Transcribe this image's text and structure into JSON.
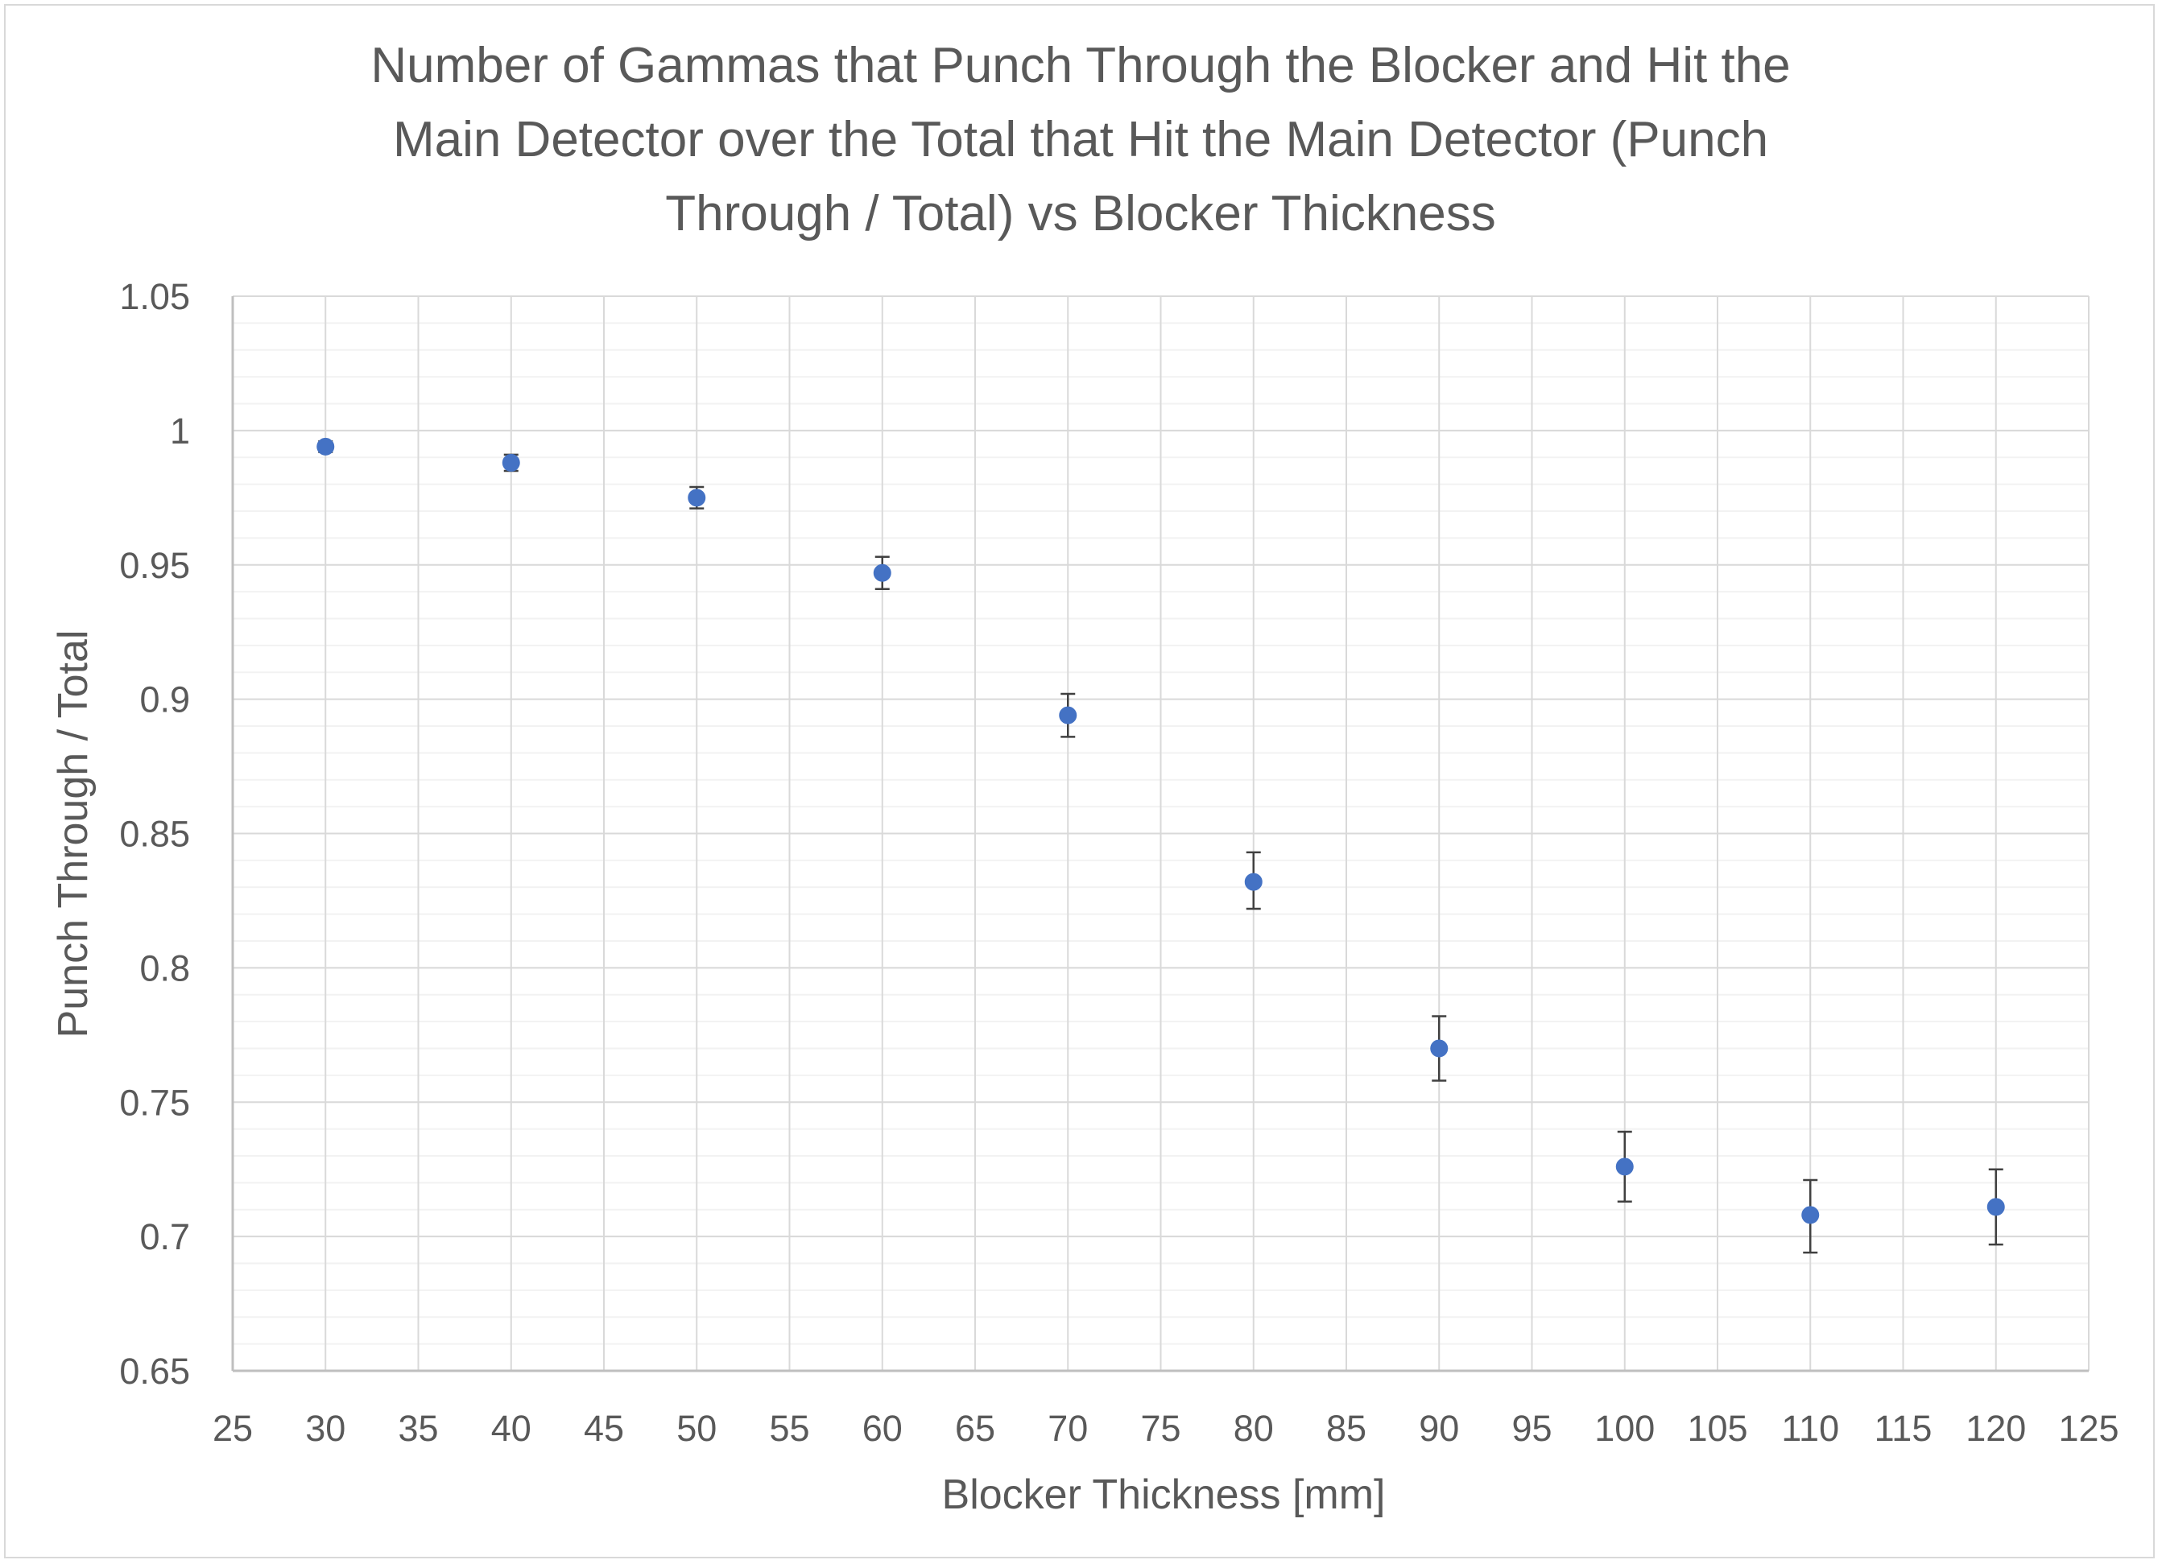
{
  "chart_data": {
    "type": "scatter",
    "title_lines": [
      "Number of Gammas that Punch Through the Blocker and Hit the",
      "Main Detector over the Total that Hit the Main Detector (Punch",
      "Through / Total) vs Blocker Thickness"
    ],
    "xlabel": "Blocker Thickness [mm]",
    "ylabel": "Punch Through / Total",
    "xlim": [
      25,
      125
    ],
    "x_major_step": 5,
    "ylim": [
      0.65,
      1.05
    ],
    "y_major_step": 0.05,
    "y_minor_step": 0.01,
    "grid": true,
    "legend": "none",
    "x_tick_labels": [
      "25",
      "30",
      "35",
      "40",
      "45",
      "50",
      "55",
      "60",
      "65",
      "70",
      "75",
      "80",
      "85",
      "90",
      "95",
      "100",
      "105",
      "110",
      "115",
      "120",
      "125"
    ],
    "y_tick_labels": [
      "0.65",
      "0.7",
      "0.75",
      "0.8",
      "0.85",
      "0.9",
      "0.95",
      "1",
      "1.05"
    ],
    "series": [
      {
        "x": [
          30,
          40,
          50,
          60,
          70,
          80,
          90,
          100,
          110,
          120
        ],
        "y": [
          0.994,
          0.988,
          0.975,
          0.947,
          0.894,
          0.832,
          0.77,
          0.726,
          0.708,
          0.711
        ],
        "error_low": [
          0.992,
          0.985,
          0.971,
          0.941,
          0.886,
          0.822,
          0.758,
          0.713,
          0.694,
          0.697
        ],
        "error_high": [
          0.996,
          0.991,
          0.979,
          0.953,
          0.902,
          0.843,
          0.782,
          0.739,
          0.721,
          0.725
        ]
      }
    ],
    "colors": {
      "marker": "#4472c4",
      "error_bar": "#404040",
      "major_grid": "#d9d9d9",
      "minor_grid": "#f2f2f2",
      "axis_line": "#bfbfbf",
      "text": "#595959"
    }
  }
}
